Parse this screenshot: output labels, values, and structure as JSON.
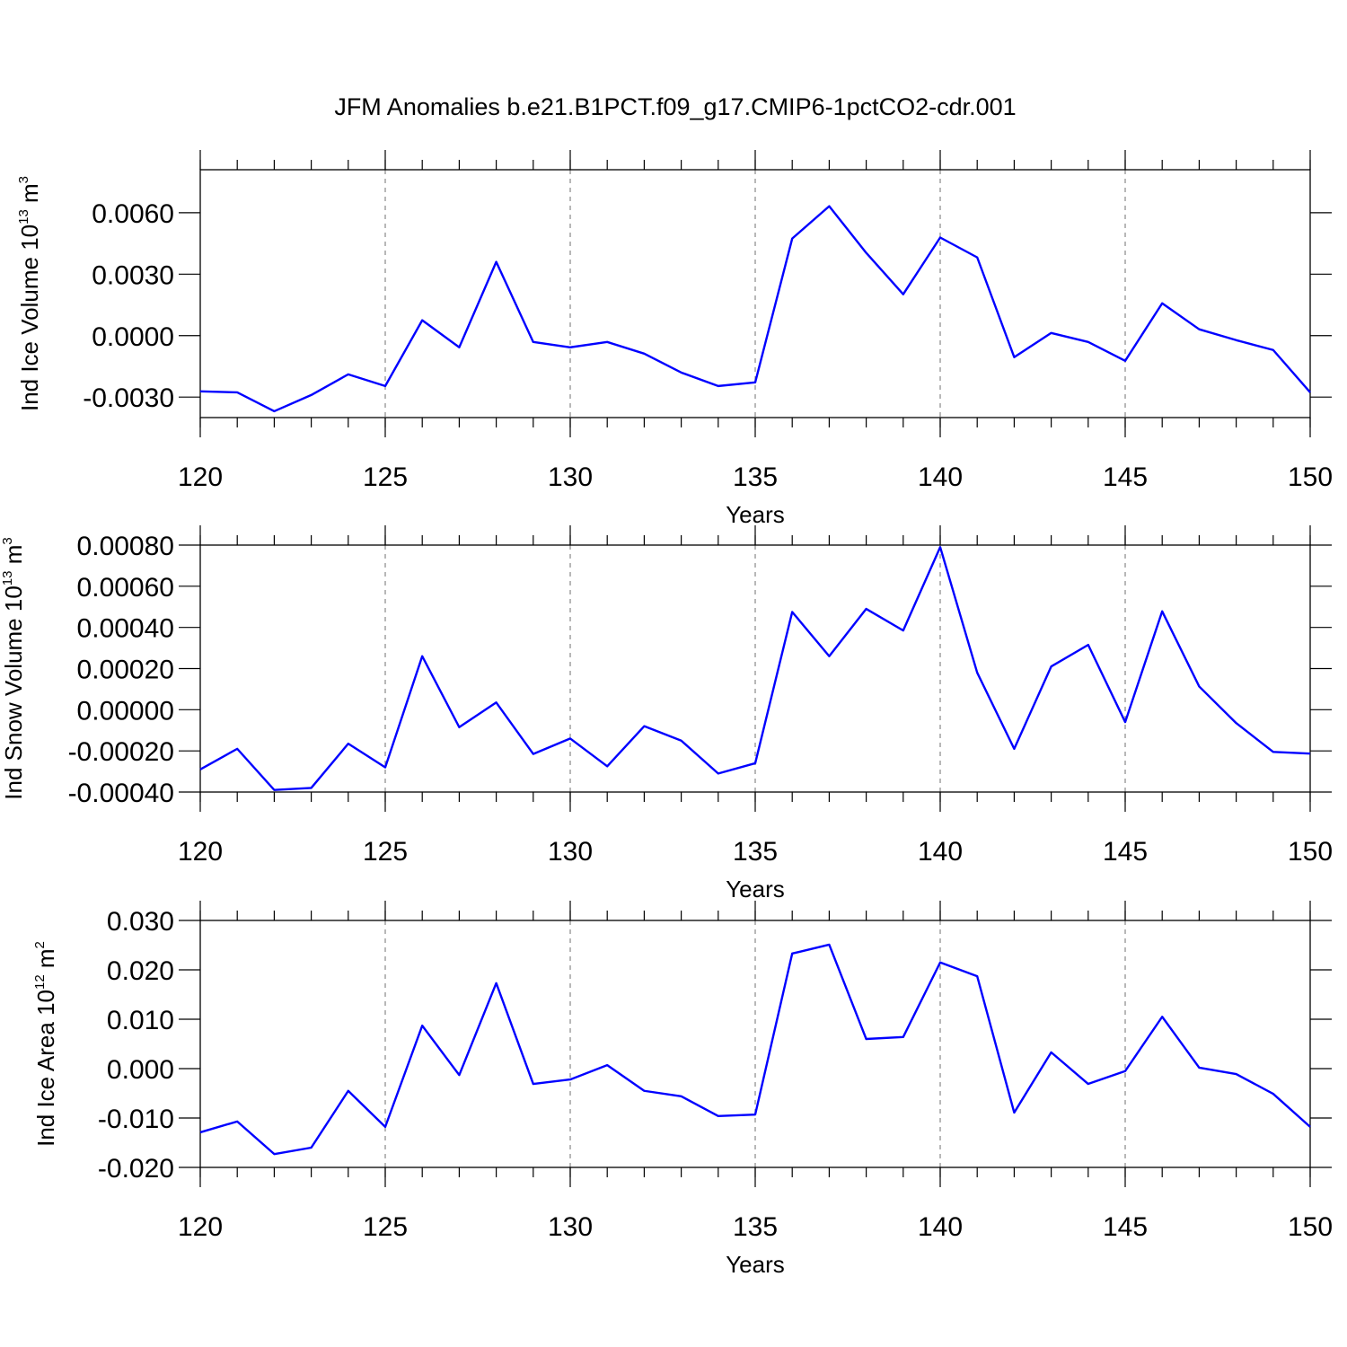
{
  "title": "JFM Anomalies b.e21.B1PCT.f09_g17.CMIP6-1pctCO2-cdr.001",
  "chart_data": [
    {
      "type": "line",
      "ylabel": [
        "Ind Ice Volume 10",
        "13",
        " m",
        "3"
      ],
      "xlabel": "Years",
      "x": [
        120,
        121,
        122,
        123,
        124,
        125,
        126,
        127,
        128,
        129,
        130,
        131,
        132,
        133,
        134,
        135,
        136,
        137,
        138,
        139,
        140,
        141,
        142,
        143,
        144,
        145,
        146,
        147,
        148,
        149,
        150
      ],
      "series": [
        {
          "color": "#0000ff",
          "values": [
            -0.00272,
            -0.00277,
            -0.00369,
            -0.0029,
            -0.00189,
            -0.00246,
            0.00075,
            -0.00057,
            0.0036,
            -0.00031,
            -0.00057,
            -0.00031,
            -0.00088,
            -0.0018,
            -0.00246,
            -0.00228,
            0.00474,
            0.00632,
            0.00404,
            0.00202,
            0.00479,
            0.00382,
            -0.00105,
            0.00013,
            -0.00031,
            -0.00123,
            0.00158,
            0.00031,
            -0.00022,
            -0.0007,
            -0.00277
          ]
        }
      ],
      "xlim": [
        120,
        150
      ],
      "xticks": [
        120,
        125,
        130,
        135,
        140,
        145,
        150
      ],
      "ylim": [
        -0.004,
        0.0081
      ],
      "yticks": [
        {
          "value": -0.003,
          "label": "-0.0030"
        },
        {
          "value": 0,
          "label": "0.0000"
        },
        {
          "value": 0.003,
          "label": "0.0030"
        },
        {
          "value": 0.006,
          "label": "0.0060"
        }
      ],
      "grid": true
    },
    {
      "type": "line",
      "ylabel": [
        "Ind Snow Volume 10",
        "13",
        " m",
        "3"
      ],
      "xlabel": "Years",
      "x": [
        120,
        121,
        122,
        123,
        124,
        125,
        126,
        127,
        128,
        129,
        130,
        131,
        132,
        133,
        134,
        135,
        136,
        137,
        138,
        139,
        140,
        141,
        142,
        143,
        144,
        145,
        146,
        147,
        148,
        149,
        150
      ],
      "series": [
        {
          "color": "#0000ff",
          "values": [
            -0.00029,
            -0.00019,
            -0.00039,
            -0.00038,
            -0.000165,
            -0.00028,
            0.00026,
            -8.5e-05,
            3.5e-05,
            -0.000215,
            -0.00014,
            -0.000275,
            -8e-05,
            -0.00015,
            -0.00031,
            -0.00026,
            0.000475,
            0.00026,
            0.00049,
            0.000385,
            0.00079,
            0.00018,
            -0.00019,
            0.00021,
            0.000315,
            -6e-05,
            0.000478,
            0.000113,
            -6.5e-05,
            -0.000205,
            -0.000213
          ]
        }
      ],
      "xlim": [
        120,
        150
      ],
      "xticks": [
        120,
        125,
        130,
        135,
        140,
        145,
        150
      ],
      "ylim": [
        -0.0004,
        0.0008
      ],
      "yticks": [
        {
          "value": -0.0004,
          "label": "-0.00040"
        },
        {
          "value": -0.0002,
          "label": "-0.00020"
        },
        {
          "value": 0,
          "label": "0.00000"
        },
        {
          "value": 0.0002,
          "label": "0.00020"
        },
        {
          "value": 0.0004,
          "label": "0.00040"
        },
        {
          "value": 0.0006,
          "label": "0.00060"
        },
        {
          "value": 0.0008,
          "label": "0.00080"
        }
      ],
      "grid": true
    },
    {
      "type": "line",
      "ylabel": [
        "Ind Ice Area 10",
        "12",
        " m",
        "2"
      ],
      "xlabel": "Years",
      "x": [
        120,
        121,
        122,
        123,
        124,
        125,
        126,
        127,
        128,
        129,
        130,
        131,
        132,
        133,
        134,
        135,
        136,
        137,
        138,
        139,
        140,
        141,
        142,
        143,
        144,
        145,
        146,
        147,
        148,
        149,
        150
      ],
      "series": [
        {
          "color": "#0000ff",
          "values": [
            -0.0129,
            -0.0107,
            -0.0173,
            -0.016,
            -0.0045,
            -0.0118,
            0.0087,
            -0.0013,
            0.0173,
            -0.0031,
            -0.0022,
            0.0007,
            -0.0045,
            -0.0056,
            -0.0096,
            -0.0093,
            0.0233,
            0.0251,
            0.006,
            0.0064,
            0.0215,
            0.0187,
            -0.0089,
            0.0033,
            -0.0031,
            -0.0005,
            0.0105,
            0.0002,
            -0.0011,
            -0.0051,
            -0.0118
          ]
        }
      ],
      "xlim": [
        120,
        150
      ],
      "xticks": [
        120,
        125,
        130,
        135,
        140,
        145,
        150
      ],
      "ylim": [
        -0.02,
        0.03
      ],
      "yticks": [
        {
          "value": -0.02,
          "label": "-0.020"
        },
        {
          "value": -0.01,
          "label": "-0.010"
        },
        {
          "value": 0,
          "label": "0.000"
        },
        {
          "value": 0.01,
          "label": "0.010"
        },
        {
          "value": 0.02,
          "label": "0.020"
        },
        {
          "value": 0.03,
          "label": "0.030"
        }
      ],
      "grid": true
    }
  ]
}
